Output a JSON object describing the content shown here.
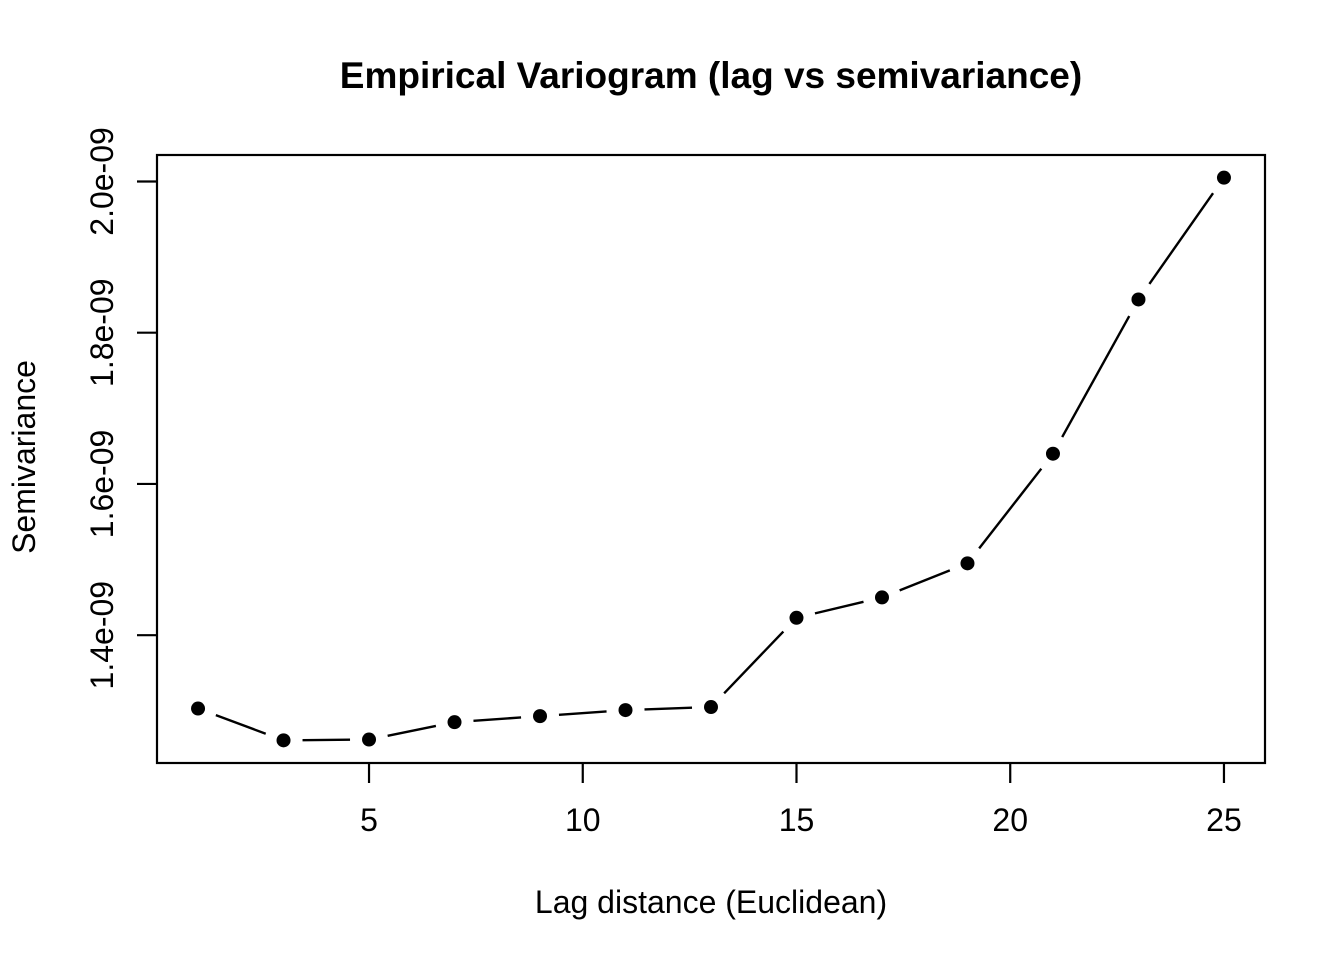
{
  "page": {
    "background": "#ffffff",
    "foreground": "#000000"
  },
  "chart_data": {
    "type": "line",
    "style": "R-base-type-b (filled points with gapped connecting segments)",
    "title": "Empirical Variogram (lag vs semivariance)",
    "xlabel": "Lag distance (Euclidean)",
    "ylabel": "Semivariance",
    "x": [
      1,
      3,
      5,
      7,
      9,
      11,
      13,
      15,
      17,
      19,
      21,
      23,
      25
    ],
    "y": [
      1.303e-09,
      1.261e-09,
      1.262e-09,
      1.285e-09,
      1.293e-09,
      1.301e-09,
      1.305e-09,
      1.423e-09,
      1.45e-09,
      1.495e-09,
      1.64e-09,
      1.844e-09,
      2.005e-09
    ],
    "x_tick_values": [
      5,
      10,
      15,
      20,
      25
    ],
    "x_tick_labels": [
      "5",
      "10",
      "15",
      "20",
      "25"
    ],
    "y_tick_values": [
      1.4e-09,
      1.6e-09,
      1.8e-09,
      2e-09
    ],
    "y_tick_labels": [
      "1.4e-09",
      "1.6e-09",
      "1.8e-09",
      "2.0e-09"
    ],
    "xlim": [
      0.04,
      25.96
    ],
    "ylim": [
      1.231e-09,
      2.035e-09
    ],
    "grid": false,
    "legend": null,
    "marker": "filled-circle",
    "color": "#000000",
    "background": "#ffffff"
  }
}
